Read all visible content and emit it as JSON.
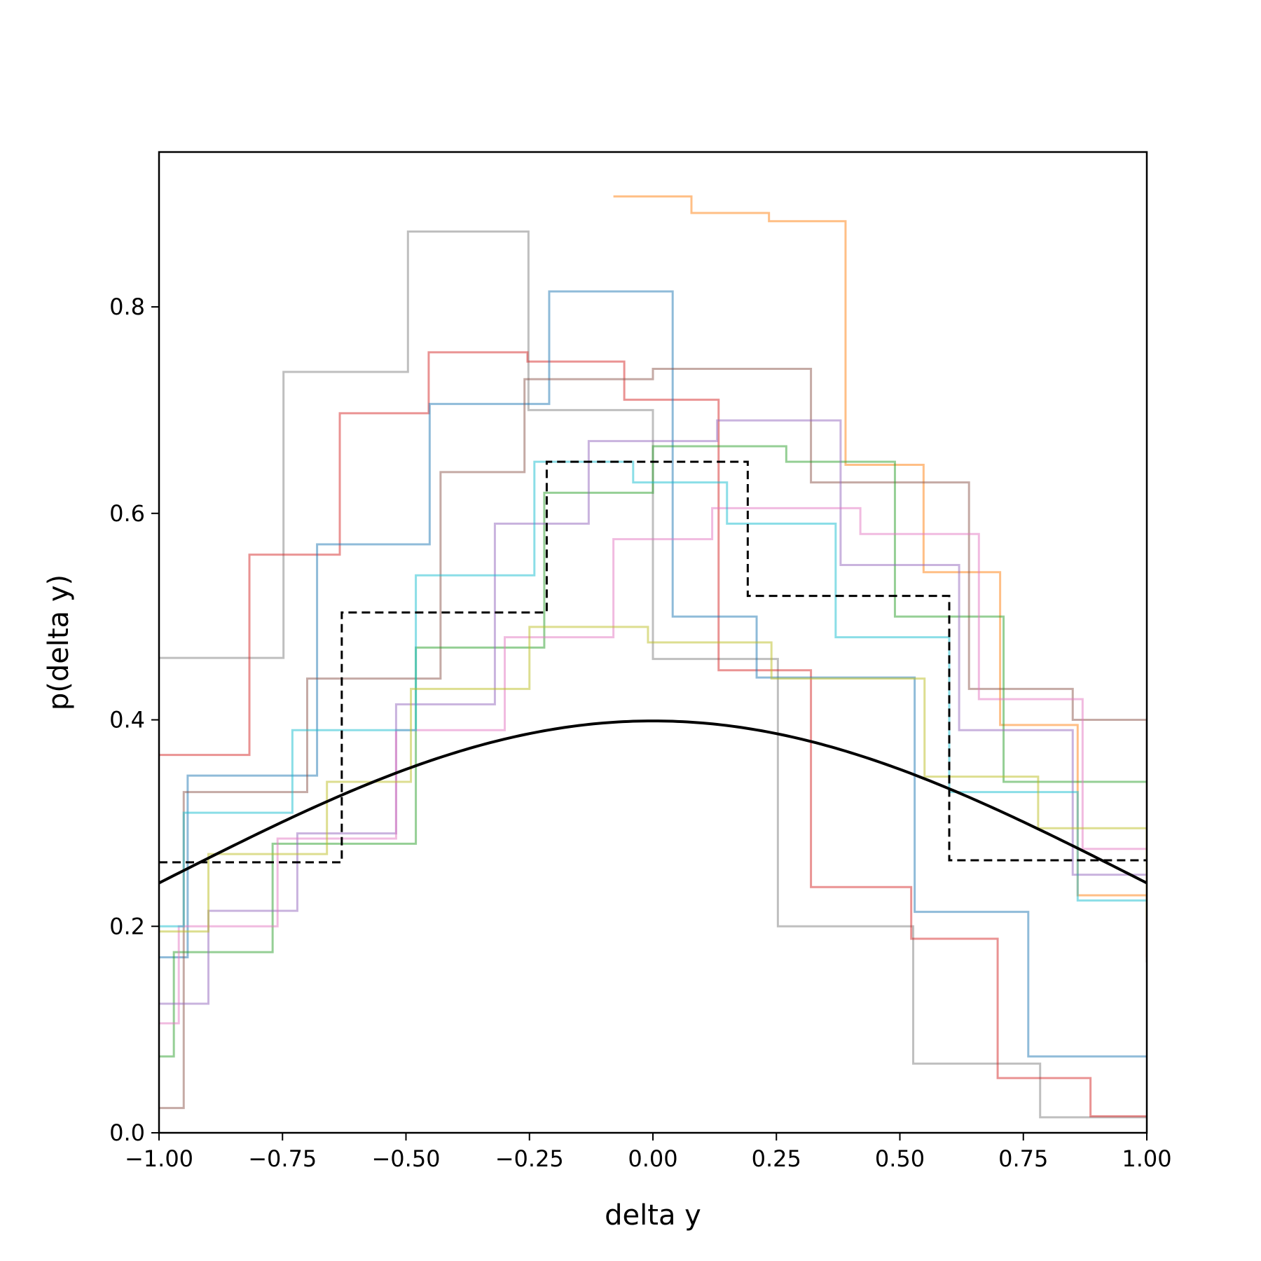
{
  "chart_data": {
    "type": "line",
    "title": "",
    "xlabel": "delta y",
    "ylabel": "p(delta y)",
    "xlim": [
      -1.0,
      1.0
    ],
    "ylim": [
      0.0,
      0.95
    ],
    "x_ticks": [
      "−1.00",
      "−0.75",
      "−0.50",
      "−0.25",
      "0.00",
      "0.25",
      "0.50",
      "0.75",
      "1.00"
    ],
    "x_tick_values": [
      -1.0,
      -0.75,
      -0.5,
      -0.25,
      0.0,
      0.25,
      0.5,
      0.75,
      1.0
    ],
    "y_ticks": [
      "0.0",
      "0.2",
      "0.4",
      "0.6",
      "0.8"
    ],
    "y_tick_values": [
      0.0,
      0.2,
      0.4,
      0.6,
      0.8
    ],
    "grid": false,
    "legend": "none",
    "series": [
      {
        "style": "step",
        "color": "#7f7f7f",
        "edges": [
          -1.0,
          -0.748,
          -0.496,
          -0.252,
          0.0,
          0.253,
          0.527,
          0.784,
          1.0
        ],
        "values": [
          0.46,
          0.737,
          0.873,
          0.7,
          0.459,
          0.2,
          0.067,
          0.015
        ]
      },
      {
        "style": "step",
        "color": "#ff7f0e",
        "edges": [
          -0.08,
          0.078,
          0.235,
          0.39,
          0.548,
          0.703,
          0.86,
          1.0
        ],
        "values": [
          0.907,
          0.891,
          0.883,
          0.647,
          0.543,
          0.395,
          0.23,
          0.17
        ]
      },
      {
        "style": "step",
        "color": "#d62728",
        "edges": [
          -1.0,
          -0.817,
          -0.634,
          -0.454,
          -0.254,
          -0.058,
          0.133,
          0.32,
          0.523,
          0.698,
          0.886,
          1.0
        ],
        "values": [
          0.366,
          0.56,
          0.697,
          0.756,
          0.747,
          0.71,
          0.448,
          0.238,
          0.188,
          0.053,
          0.016,
          0.016
        ]
      },
      {
        "style": "step",
        "color": "#1f77b4",
        "edges": [
          -1.0,
          -0.942,
          -0.68,
          -0.452,
          -0.21,
          0.04,
          0.21,
          0.53,
          0.76,
          1.0
        ],
        "values": [
          0.17,
          0.346,
          0.57,
          0.706,
          0.815,
          0.5,
          0.441,
          0.214,
          0.074,
          0.074
        ]
      },
      {
        "style": "step",
        "color": "#8c564b",
        "edges": [
          -1.0,
          -0.95,
          -0.7,
          -0.43,
          -0.26,
          0.0,
          0.32,
          0.64,
          0.85,
          1.0
        ],
        "values": [
          0.024,
          0.33,
          0.44,
          0.64,
          0.73,
          0.74,
          0.63,
          0.43,
          0.4,
          0.165
        ]
      },
      {
        "style": "step",
        "color": "#2ca02c",
        "edges": [
          -1.0,
          -0.97,
          -0.77,
          -0.48,
          -0.22,
          0.0,
          0.27,
          0.49,
          0.71,
          1.0
        ],
        "values": [
          0.074,
          0.175,
          0.28,
          0.47,
          0.62,
          0.665,
          0.65,
          0.5,
          0.34,
          0.34
        ]
      },
      {
        "style": "step",
        "color": "#9467bd",
        "edges": [
          -1.0,
          -0.9,
          -0.72,
          -0.52,
          -0.32,
          -0.13,
          0.13,
          0.38,
          0.62,
          0.85,
          1.0
        ],
        "values": [
          0.125,
          0.215,
          0.29,
          0.415,
          0.59,
          0.67,
          0.69,
          0.55,
          0.39,
          0.25,
          0.25
        ]
      },
      {
        "style": "step",
        "color": "#e377c2",
        "edges": [
          -1.0,
          -0.96,
          -0.76,
          -0.52,
          -0.3,
          -0.08,
          0.12,
          0.42,
          0.66,
          0.87,
          1.0
        ],
        "values": [
          0.106,
          0.2,
          0.285,
          0.39,
          0.48,
          0.575,
          0.605,
          0.58,
          0.42,
          0.275,
          0.275
        ]
      },
      {
        "style": "step",
        "color": "#17becf",
        "edges": [
          -1.0,
          -0.95,
          -0.73,
          -0.48,
          -0.24,
          -0.04,
          0.15,
          0.37,
          0.6,
          0.86,
          1.0
        ],
        "values": [
          0.2,
          0.31,
          0.39,
          0.54,
          0.65,
          0.63,
          0.59,
          0.48,
          0.33,
          0.225,
          0.225
        ]
      },
      {
        "style": "step",
        "color": "#bcbd22",
        "edges": [
          -1.0,
          -0.9,
          -0.66,
          -0.49,
          -0.25,
          -0.01,
          0.24,
          0.55,
          0.78,
          1.0
        ],
        "values": [
          0.195,
          0.27,
          0.34,
          0.43,
          0.49,
          0.475,
          0.44,
          0.345,
          0.295,
          0.21
        ]
      },
      {
        "style": "step",
        "color": "#000000",
        "dash": true,
        "edges": [
          -1.0,
          -0.63,
          -0.215,
          0.192,
          0.6,
          1.0
        ],
        "values": [
          0.262,
          0.504,
          0.65,
          0.52,
          0.264
        ]
      },
      {
        "style": "line",
        "color": "#000000",
        "function": "normal_pdf",
        "mu": 0.0,
        "sigma": 1.0,
        "x_range": [
          -1.0,
          1.0
        ]
      }
    ]
  }
}
